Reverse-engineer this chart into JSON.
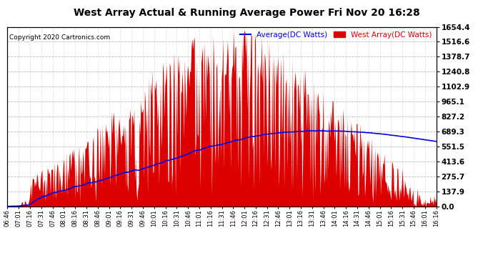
{
  "title": "West Array Actual & Running Average Power Fri Nov 20 16:28",
  "copyright": "Copyright 2020 Cartronics.com",
  "legend_avg": "Average(DC Watts)",
  "legend_west": "West Array(DC Watts)",
  "ylabel_right_values": [
    0.0,
    137.9,
    275.7,
    413.6,
    551.5,
    689.3,
    827.2,
    965.1,
    1102.9,
    1240.8,
    1378.7,
    1516.6,
    1654.4
  ],
  "ymax": 1654.4,
  "ymin": 0.0,
  "background_color": "#ffffff",
  "plot_bg_color": "#ffffff",
  "bar_color": "#dd0000",
  "avg_line_color": "#0000dd",
  "grid_color": "#aaaaaa",
  "title_color": "#000000",
  "copyright_color": "#000000",
  "legend_avg_color": "#0000dd",
  "legend_west_color": "#dd0000",
  "x_tick_labels": [
    "06:46",
    "07:01",
    "07:16",
    "07:31",
    "07:46",
    "08:01",
    "08:16",
    "08:31",
    "08:46",
    "09:01",
    "09:16",
    "09:31",
    "09:46",
    "10:01",
    "10:16",
    "10:31",
    "10:46",
    "11:01",
    "11:16",
    "11:31",
    "11:46",
    "12:01",
    "12:16",
    "12:31",
    "12:46",
    "13:01",
    "13:16",
    "13:31",
    "13:46",
    "14:01",
    "14:16",
    "14:31",
    "14:46",
    "15:01",
    "15:16",
    "15:31",
    "15:46",
    "16:01",
    "16:16"
  ],
  "seed": 12345
}
